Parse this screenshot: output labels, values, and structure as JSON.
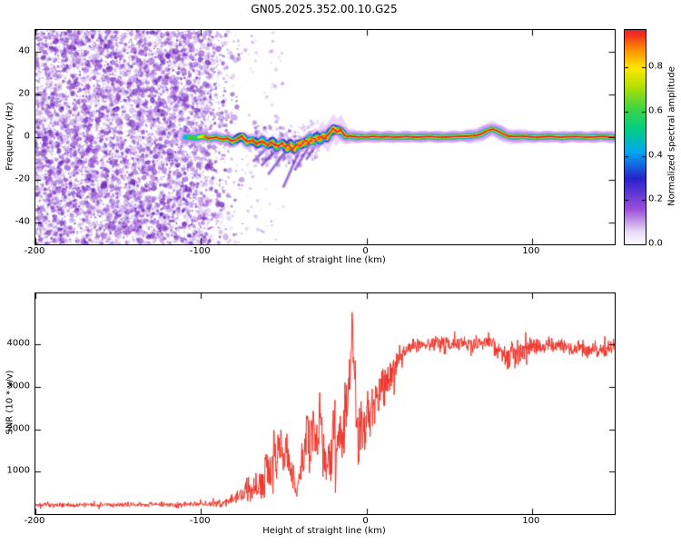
{
  "title": "GN05.2025.352.00.10.G25",
  "chart_data": [
    {
      "type": "heatmap",
      "name": "occultation-spectrogram",
      "xlabel": "Height of straight line (km)",
      "ylabel": "Frequency (Hz)",
      "xlim": [
        -200,
        150
      ],
      "ylim": [
        -50,
        50
      ],
      "xticks": [
        -200,
        -100,
        0,
        100
      ],
      "yticks": [
        -40,
        -20,
        0,
        20,
        40
      ],
      "colorbar": {
        "label": "Normalized spectral amplitude",
        "ticks": [
          0,
          0.2,
          0.4,
          0.6,
          0.8
        ],
        "range": [
          0,
          0.97
        ]
      },
      "colormap": [
        [
          0,
          "#ffffff"
        ],
        [
          0.06,
          "#e9d9f5"
        ],
        [
          0.16,
          "#9b50d8"
        ],
        [
          0.3,
          "#2a22cc"
        ],
        [
          0.42,
          "#00a8f0"
        ],
        [
          0.52,
          "#00cc88"
        ],
        [
          0.62,
          "#44d444"
        ],
        [
          0.72,
          "#b8e000"
        ],
        [
          0.8,
          "#ffe800"
        ],
        [
          0.88,
          "#ff9100"
        ],
        [
          0.95,
          "#f03020"
        ],
        [
          1,
          "#d8103a"
        ]
      ],
      "noise": {
        "x_start": -200,
        "x_end": -72,
        "fade_start": -104,
        "colors": [
          "#5a0fb0",
          "#7a2cc8",
          "#9a55d8",
          "#b989e4"
        ]
      },
      "ridge": [
        [
          -108,
          0
        ],
        [
          -103,
          -0.4
        ],
        [
          -99,
          0.6
        ],
        [
          -95,
          -0.8
        ],
        [
          -91,
          0.2
        ],
        [
          -87,
          -1.2
        ],
        [
          -84,
          -0.3
        ],
        [
          -81,
          -2.2
        ],
        [
          -78,
          -0.8
        ],
        [
          -75,
          0.8
        ],
        [
          -72,
          -2.8
        ],
        [
          -69,
          -0.8
        ],
        [
          -66,
          -3.6
        ],
        [
          -63,
          -1.2
        ],
        [
          -60,
          -4.4
        ],
        [
          -57,
          -1.6
        ],
        [
          -54,
          -5.2
        ],
        [
          -51,
          -2
        ],
        [
          -48,
          -6
        ],
        [
          -46,
          -2.4
        ],
        [
          -44,
          -6.8
        ],
        [
          -42,
          -2.8
        ],
        [
          -40,
          -4.8
        ],
        [
          -38,
          -1
        ],
        [
          -36,
          -3.8
        ],
        [
          -34,
          0.2
        ],
        [
          -32,
          -2.8
        ],
        [
          -30,
          0.6
        ],
        [
          -28,
          -1.8
        ],
        [
          -26,
          1.2
        ],
        [
          -24,
          -0.8
        ],
        [
          -22,
          2.2
        ],
        [
          -20,
          4.6
        ],
        [
          -18,
          2
        ],
        [
          -16,
          4.2
        ],
        [
          -14,
          1.2
        ],
        [
          -12,
          0.2
        ],
        [
          -9,
          0.6
        ],
        [
          -6,
          0
        ],
        [
          -3,
          0.3
        ],
        [
          0,
          0
        ],
        [
          4,
          0.4
        ],
        [
          8,
          0
        ],
        [
          12,
          0.3
        ],
        [
          18,
          0
        ],
        [
          24,
          0.3
        ],
        [
          30,
          0
        ],
        [
          38,
          0.3
        ],
        [
          46,
          0
        ],
        [
          54,
          0.3
        ],
        [
          62,
          0.5
        ],
        [
          68,
          1
        ],
        [
          72,
          2.6
        ],
        [
          76,
          4
        ],
        [
          80,
          2.6
        ],
        [
          84,
          0.8
        ],
        [
          88,
          0.2
        ],
        [
          95,
          0.4
        ],
        [
          102,
          0
        ],
        [
          110,
          0.3
        ],
        [
          118,
          0
        ],
        [
          126,
          0.3
        ],
        [
          134,
          0
        ],
        [
          142,
          0.3
        ],
        [
          150,
          0
        ]
      ],
      "halos": [
        [
          -112,
          -94,
          9
        ],
        [
          -27,
          -9,
          16
        ],
        [
          30,
          60,
          10
        ],
        [
          62,
          95,
          16
        ],
        [
          100,
          150,
          8
        ]
      ],
      "streaks": [
        [
          -45,
          -3,
          -59,
          -17
        ],
        [
          -38,
          -2,
          -50,
          -23
        ],
        [
          -33,
          -2,
          -43,
          -15
        ],
        [
          -28,
          -1,
          -36,
          -10
        ],
        [
          -52,
          -4,
          -63,
          -13
        ],
        [
          -60,
          -5,
          -68,
          -11
        ]
      ],
      "ridge_layers": [
        {
          "color": "#cf8df2",
          "width": 11,
          "alpha": 0.5,
          "range": [
            -110,
            150
          ]
        },
        {
          "color": "#2f2fd0",
          "width": 7.5,
          "alpha": 0.85,
          "range": [
            -82,
            -12
          ]
        },
        {
          "color": "#00b8ee",
          "width": 5.6,
          "alpha": 0.95,
          "range": [
            -108,
            150
          ]
        },
        {
          "color": "#2ecc4e",
          "width": 4.2,
          "alpha": 1,
          "range": [
            -106,
            150
          ]
        },
        {
          "color": "#d9ee00",
          "width": 2.8,
          "alpha": 1,
          "range": [
            -100,
            150
          ]
        },
        {
          "color": "#ff9500",
          "width": 1.9,
          "alpha": 1,
          "range": [
            -97,
            150
          ]
        },
        {
          "color": "#e01535",
          "width": 1.2,
          "alpha": 1,
          "range": [
            -96,
            150
          ]
        }
      ]
    },
    {
      "type": "line",
      "name": "snr-profile",
      "xlabel": "Height of straight line (km)",
      "ylabel": "SNR (10 * v/v)",
      "xlim": [
        -200,
        150
      ],
      "ylim": [
        0,
        5200
      ],
      "xticks": [
        -200,
        -100,
        0,
        100
      ],
      "yticks": [
        1000,
        2000,
        3000,
        4000
      ],
      "color": "#f03328",
      "envelope": [
        [
          -200,
          210,
          70
        ],
        [
          -160,
          215,
          70
        ],
        [
          -130,
          220,
          75
        ],
        [
          -105,
          235,
          80
        ],
        [
          -95,
          250,
          90
        ],
        [
          -88,
          270,
          110
        ],
        [
          -83,
          310,
          150
        ],
        [
          -79,
          360,
          200
        ],
        [
          -76,
          480,
          280
        ],
        [
          -74,
          420,
          220
        ],
        [
          -72,
          620,
          360
        ],
        [
          -70,
          470,
          260
        ],
        [
          -68,
          760,
          430
        ],
        [
          -66,
          540,
          300
        ],
        [
          -64,
          860,
          520
        ],
        [
          -62,
          640,
          340
        ],
        [
          -60,
          1350,
          780
        ],
        [
          -58,
          950,
          580
        ],
        [
          -56,
          1650,
          780
        ],
        [
          -54,
          1150,
          680
        ],
        [
          -52,
          1850,
          700
        ],
        [
          -50,
          1300,
          700
        ],
        [
          -48,
          1680,
          780
        ],
        [
          -46,
          1080,
          600
        ],
        [
          -44,
          820,
          420
        ],
        [
          -42,
          640,
          320
        ],
        [
          -40,
          900,
          500
        ],
        [
          -38,
          1450,
          850
        ],
        [
          -36,
          1950,
          880
        ],
        [
          -34,
          1400,
          800
        ],
        [
          -32,
          2150,
          800
        ],
        [
          -30,
          1600,
          800
        ],
        [
          -28,
          2350,
          700
        ],
        [
          -26,
          1500,
          800
        ],
        [
          -24,
          950,
          520
        ],
        [
          -22,
          1300,
          700
        ],
        [
          -20,
          1950,
          880
        ],
        [
          -18,
          1450,
          800
        ],
        [
          -16,
          2150,
          880
        ],
        [
          -14,
          1550,
          800
        ],
        [
          -12,
          2500,
          950
        ],
        [
          -10,
          3400,
          900
        ],
        [
          -8.5,
          4600,
          250
        ],
        [
          -7,
          2900,
          1150
        ],
        [
          -5,
          1900,
          900
        ],
        [
          -3,
          2150,
          820
        ],
        [
          -1,
          2050,
          800
        ],
        [
          1,
          2300,
          800
        ],
        [
          3,
          2550,
          720
        ],
        [
          5,
          2500,
          780
        ],
        [
          8,
          2850,
          680
        ],
        [
          11,
          3050,
          600
        ],
        [
          14,
          3250,
          520
        ],
        [
          17,
          3450,
          460
        ],
        [
          20,
          3650,
          360
        ],
        [
          24,
          3850,
          280
        ],
        [
          28,
          3960,
          240
        ],
        [
          35,
          4020,
          210
        ],
        [
          45,
          4000,
          220
        ],
        [
          55,
          4040,
          200
        ],
        [
          65,
          4000,
          240
        ],
        [
          72,
          4080,
          240
        ],
        [
          78,
          3950,
          320
        ],
        [
          84,
          3650,
          480
        ],
        [
          88,
          3820,
          380
        ],
        [
          93,
          3720,
          430
        ],
        [
          97,
          3900,
          300
        ],
        [
          102,
          3940,
          260
        ],
        [
          112,
          3990,
          220
        ],
        [
          122,
          3940,
          250
        ],
        [
          132,
          3890,
          250
        ],
        [
          142,
          3860,
          250
        ],
        [
          150,
          3900,
          220
        ]
      ]
    }
  ]
}
